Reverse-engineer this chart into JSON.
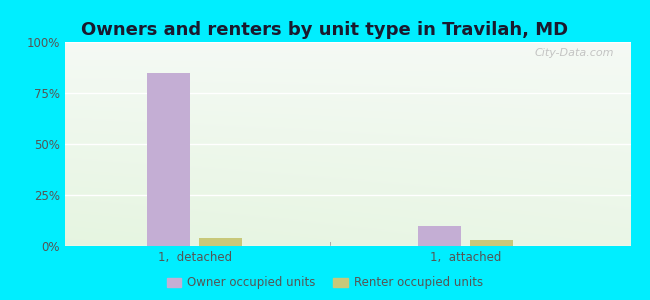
{
  "title": "Owners and renters by unit type in Travilah, MD",
  "categories": [
    "1,  detached",
    "1,  attached"
  ],
  "owner_values": [
    85,
    10
  ],
  "renter_values": [
    4,
    3
  ],
  "owner_color": "#c4aed4",
  "renter_color": "#c8c87a",
  "background_cyan": "#00eeff",
  "ylim": [
    0,
    100
  ],
  "yticks": [
    0,
    25,
    50,
    75,
    100
  ],
  "ytick_labels": [
    "0%",
    "25%",
    "50%",
    "75%",
    "100%"
  ],
  "title_fontsize": 13,
  "legend_labels": [
    "Owner occupied units",
    "Renter occupied units"
  ],
  "watermark": "City-Data.com",
  "bar_width": 0.18,
  "group_positions": [
    0.55,
    1.7
  ]
}
